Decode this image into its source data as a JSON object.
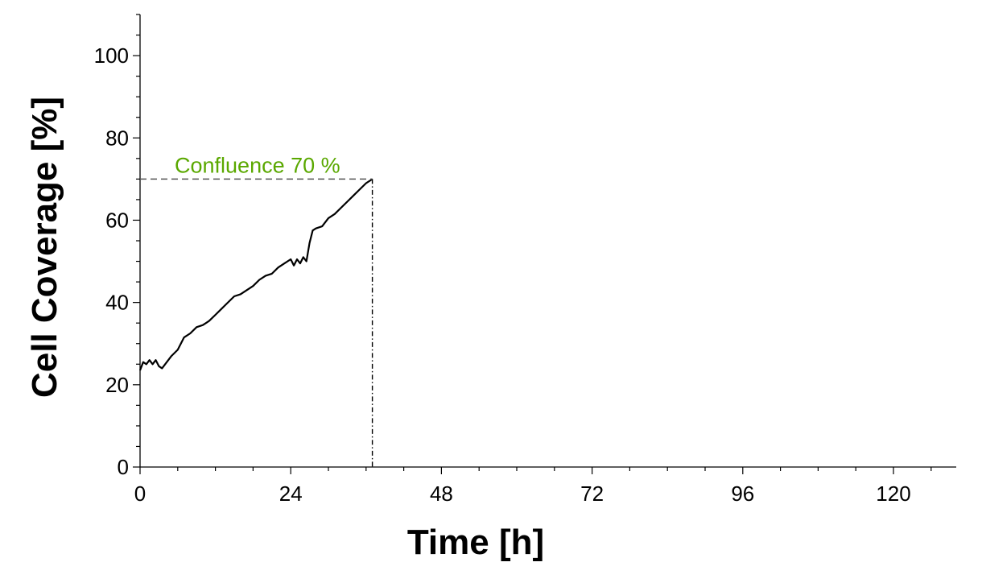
{
  "chart_data": {
    "type": "line",
    "xlabel": "Time [h]",
    "ylabel": "Cell Coverage [%]",
    "xlim": [
      0,
      130
    ],
    "ylim": [
      0,
      110
    ],
    "x_ticks": [
      0,
      24,
      48,
      72,
      96,
      120
    ],
    "x_minor_step": 6,
    "y_ticks": [
      0,
      20,
      40,
      60,
      80,
      100
    ],
    "y_minor_step": 5,
    "grid": false,
    "series": [
      {
        "color": "#000000",
        "x": [
          0,
          0.5,
          1,
          1.5,
          2,
          2.5,
          3,
          3.5,
          4,
          5,
          6,
          7,
          8,
          9,
          10,
          11,
          12,
          13,
          14,
          15,
          16,
          17,
          18,
          19,
          20,
          21,
          22,
          23,
          24,
          24.5,
          25,
          25.5,
          26,
          26.5,
          27,
          27.5,
          28,
          29,
          30,
          31,
          32,
          33,
          34,
          35,
          36,
          37
        ],
        "y": [
          23.5,
          25.5,
          25,
          26,
          25,
          26,
          24.5,
          24,
          25,
          27,
          28.5,
          31.5,
          32.5,
          34,
          34.5,
          35.5,
          37,
          38.5,
          40,
          41.5,
          42,
          43,
          44,
          45.5,
          46.5,
          47,
          48.5,
          49.5,
          50.5,
          49,
          50.5,
          49.5,
          51,
          50,
          54.5,
          57.5,
          58,
          58.5,
          60.5,
          61.5,
          63,
          64.5,
          66,
          67.5,
          69,
          70
        ]
      }
    ],
    "annotations": {
      "confluence_label": "Confluence 70 %",
      "confluence_color": "#5aa800",
      "confluence_value": 70,
      "confluence_time": 37
    }
  }
}
